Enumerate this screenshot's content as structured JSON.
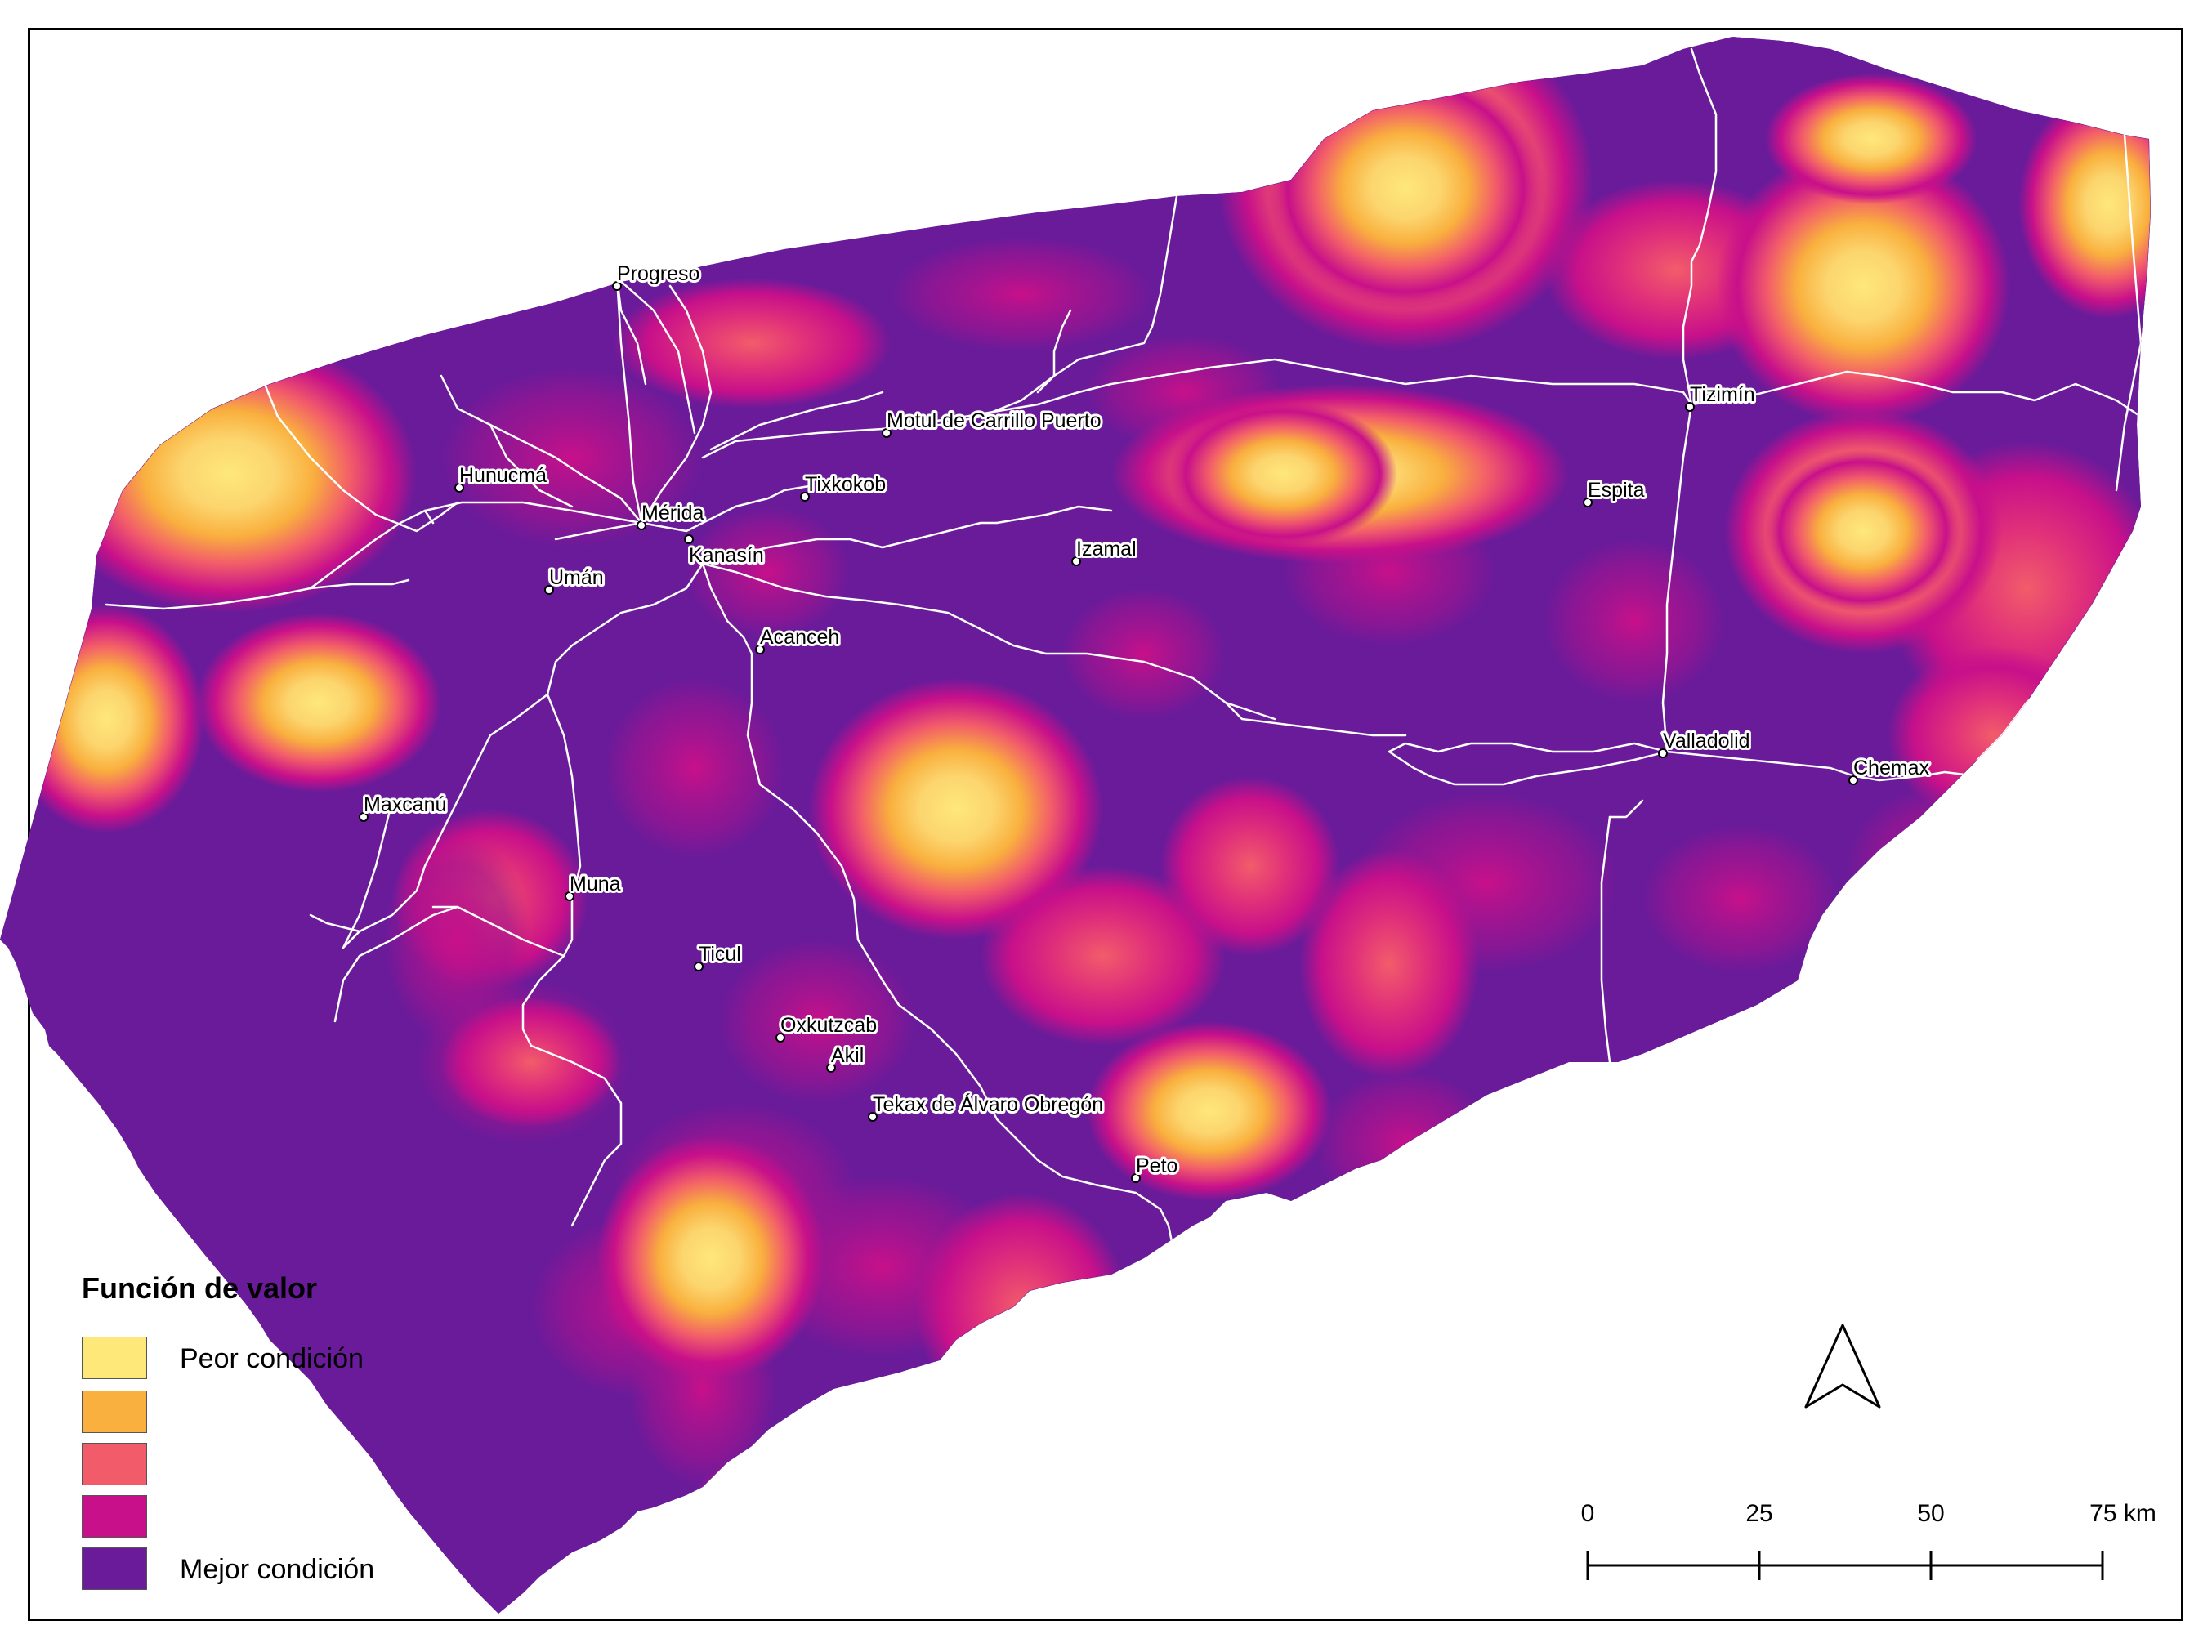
{
  "legend": {
    "title": "Función de valor",
    "items": [
      {
        "label": "Peor condición",
        "color": "#FEE87A"
      },
      {
        "label": "",
        "color": "#F9B03E"
      },
      {
        "label": "",
        "color": "#F25C6A"
      },
      {
        "label": "",
        "color": "#C8108A"
      },
      {
        "label": "Mejor condición",
        "color": "#6A1B9A"
      }
    ]
  },
  "scale_bar": {
    "ticks": [
      "0",
      "25",
      "50",
      "75 km"
    ]
  },
  "north_arrow": {
    "icon": "north-arrow-icon"
  },
  "map_colors": {
    "base": "#6A1B9A",
    "mid": "#C8108A",
    "hot": "#F25C6A",
    "warm": "#F9B03E",
    "peak": "#FEE87A",
    "roads": "#ffffff"
  },
  "cities": [
    {
      "name": "Progreso"
    },
    {
      "name": "Hunucmá"
    },
    {
      "name": "Mérida"
    },
    {
      "name": "Tixkokob"
    },
    {
      "name": "Motul de Carrillo Puerto"
    },
    {
      "name": "Tizimín"
    },
    {
      "name": "Espita"
    },
    {
      "name": "Izamal"
    },
    {
      "name": "Kanasín"
    },
    {
      "name": "Umán"
    },
    {
      "name": "Acanceh"
    },
    {
      "name": "Valladolid"
    },
    {
      "name": "Chemax"
    },
    {
      "name": "Maxcanú"
    },
    {
      "name": "Muna"
    },
    {
      "name": "Ticul"
    },
    {
      "name": "Oxkutzcab"
    },
    {
      "name": "Akil"
    },
    {
      "name": "Tekax de Álvaro Obregón"
    },
    {
      "name": "Peto"
    }
  ]
}
